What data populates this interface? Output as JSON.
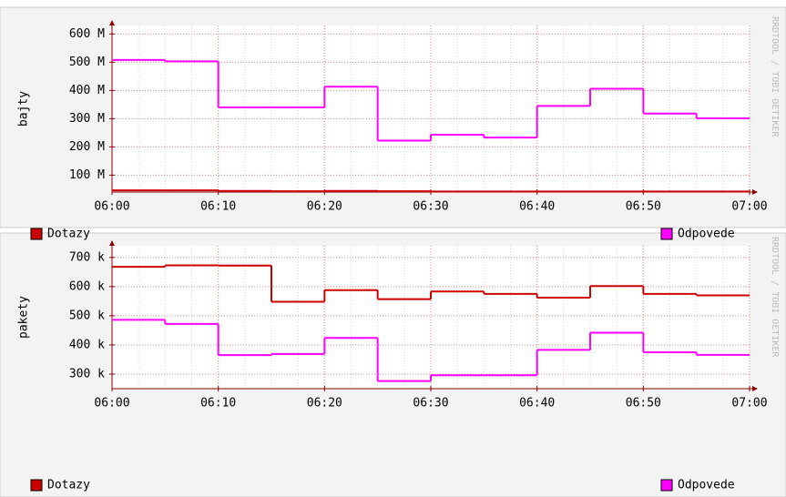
{
  "chart_data": [
    {
      "type": "line",
      "ylabel": "bajty",
      "watermark": "RRDTOOL / TOBI OETIKER",
      "x": [
        0,
        5,
        10,
        15,
        20,
        25,
        30,
        35,
        40,
        45,
        50,
        55
      ],
      "step": 5,
      "xlim": [
        0,
        60
      ],
      "xticks": [
        {
          "value": 0,
          "label": "06:00"
        },
        {
          "value": 10,
          "label": "06:10"
        },
        {
          "value": 20,
          "label": "06:20"
        },
        {
          "value": 30,
          "label": "06:30"
        },
        {
          "value": 40,
          "label": "06:40"
        },
        {
          "value": 50,
          "label": "06:50"
        },
        {
          "value": 60,
          "label": "07:00"
        }
      ],
      "ylim": [
        40,
        630
      ],
      "yticks": [
        {
          "value": 100,
          "label": "100 M"
        },
        {
          "value": 200,
          "label": "200 M"
        },
        {
          "value": 300,
          "label": "300 M"
        },
        {
          "value": 400,
          "label": "400 M"
        },
        {
          "value": 500,
          "label": "500 M"
        },
        {
          "value": 600,
          "label": "600 M"
        }
      ],
      "grid": true,
      "series": [
        {
          "name": "Dotazy",
          "color": "#cc0000",
          "values": [
            46,
            46,
            44,
            43,
            44,
            43,
            42,
            42,
            42,
            42,
            42,
            42
          ]
        },
        {
          "name": "Odpovede",
          "color": "#ff00ff",
          "values": [
            508,
            503,
            340,
            340,
            413,
            222,
            243,
            233,
            345,
            406,
            318,
            301
          ]
        }
      ]
    },
    {
      "type": "line",
      "ylabel": "pakety",
      "watermark": "RRDTOOL / TOBI OETIKER",
      "x": [
        0,
        5,
        10,
        15,
        20,
        25,
        30,
        35,
        40,
        45,
        50,
        55
      ],
      "step": 5,
      "xlim": [
        0,
        60
      ],
      "xticks": [
        {
          "value": 0,
          "label": "06:00"
        },
        {
          "value": 10,
          "label": "06:10"
        },
        {
          "value": 20,
          "label": "06:20"
        },
        {
          "value": 30,
          "label": "06:30"
        },
        {
          "value": 40,
          "label": "06:40"
        },
        {
          "value": 50,
          "label": "06:50"
        },
        {
          "value": 60,
          "label": "07:00"
        }
      ],
      "ylim": [
        250,
        740
      ],
      "yticks": [
        {
          "value": 300,
          "label": "300 k"
        },
        {
          "value": 400,
          "label": "400 k"
        },
        {
          "value": 500,
          "label": "500 k"
        },
        {
          "value": 600,
          "label": "600 k"
        },
        {
          "value": 700,
          "label": "700 k"
        }
      ],
      "grid": true,
      "series": [
        {
          "name": "Dotazy",
          "color": "#cc0000",
          "values": [
            668,
            673,
            672,
            548,
            588,
            557,
            583,
            575,
            562,
            602,
            575,
            570
          ]
        },
        {
          "name": "Odpovede",
          "color": "#ff00ff",
          "values": [
            486,
            472,
            365,
            369,
            424,
            276,
            296,
            296,
            383,
            442,
            375,
            366
          ]
        }
      ]
    }
  ]
}
